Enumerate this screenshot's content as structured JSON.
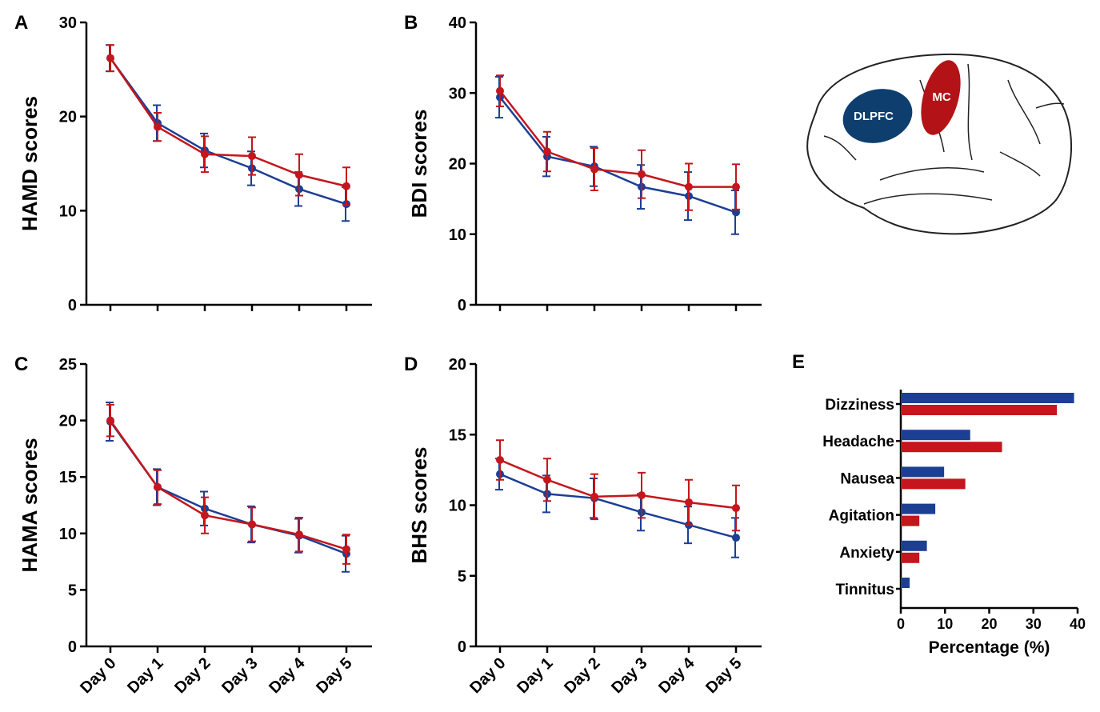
{
  "chart_data": [
    {
      "type": "line",
      "label": "A",
      "ylabel": "HAMD scores",
      "categories": [
        null,
        null,
        null,
        null,
        null,
        null
      ],
      "ylim": [
        0,
        30
      ],
      "yticks": [
        0,
        10,
        20,
        30
      ],
      "series": [
        {
          "color": "#1c3f94",
          "values": [
            26.2,
            19.3,
            16.4,
            14.5,
            12.3,
            10.7
          ],
          "errors": [
            1.4,
            1.9,
            1.8,
            1.8,
            1.8,
            1.8
          ]
        },
        {
          "color": "#c4161c",
          "values": [
            26.2,
            18.9,
            16.0,
            15.8,
            13.8,
            12.6
          ],
          "errors": [
            1.4,
            1.5,
            1.9,
            2.0,
            2.2,
            2.0
          ]
        }
      ]
    },
    {
      "type": "line",
      "label": "B",
      "ylabel": "BDI scores",
      "categories": [
        null,
        null,
        null,
        null,
        null,
        null
      ],
      "ylim": [
        0,
        40
      ],
      "yticks": [
        0,
        10,
        20,
        30,
        40
      ],
      "series": [
        {
          "color": "#1c3f94",
          "values": [
            29.4,
            21.0,
            19.6,
            16.7,
            15.4,
            13.1
          ],
          "errors": [
            2.9,
            2.8,
            2.8,
            3.1,
            3.4,
            3.1
          ]
        },
        {
          "color": "#c4161c",
          "values": [
            30.3,
            21.7,
            19.2,
            18.5,
            16.7,
            16.7
          ],
          "errors": [
            2.2,
            2.8,
            3.0,
            3.4,
            3.3,
            3.2
          ]
        }
      ]
    },
    {
      "type": "line",
      "label": "C",
      "ylabel": "HAMA scores",
      "categories": [
        "Day 0",
        "Day 1",
        "Day 2",
        "Day 3",
        "Day 4",
        "Day 5"
      ],
      "ylim": [
        0,
        25
      ],
      "yticks": [
        0,
        5,
        10,
        15,
        20,
        25
      ],
      "series": [
        {
          "color": "#1c3f94",
          "values": [
            19.9,
            14.1,
            12.2,
            10.8,
            9.8,
            8.2
          ],
          "errors": [
            1.7,
            1.6,
            1.5,
            1.6,
            1.5,
            1.6
          ]
        },
        {
          "color": "#c4161c",
          "values": [
            20.0,
            14.1,
            11.6,
            10.8,
            9.9,
            8.6
          ],
          "errors": [
            1.4,
            1.5,
            1.6,
            1.5,
            1.5,
            1.3
          ]
        }
      ]
    },
    {
      "type": "line",
      "label": "D",
      "ylabel": "BHS scores",
      "categories": [
        "Day 0",
        "Day 1",
        "Day 2",
        "Day 3",
        "Day 4",
        "Day 5"
      ],
      "ylim": [
        0,
        20
      ],
      "yticks": [
        0,
        5,
        10,
        15,
        20
      ],
      "series": [
        {
          "color": "#1c3f94",
          "values": [
            12.2,
            10.8,
            10.5,
            9.5,
            8.6,
            7.7
          ],
          "errors": [
            1.1,
            1.3,
            1.4,
            1.3,
            1.3,
            1.4
          ]
        },
        {
          "color": "#c4161c",
          "values": [
            13.2,
            11.8,
            10.6,
            10.7,
            10.2,
            9.8
          ],
          "errors": [
            1.4,
            1.5,
            1.6,
            1.6,
            1.6,
            1.6
          ]
        }
      ]
    },
    {
      "type": "hbar",
      "label": "E",
      "xlabel": "Percentage (%)",
      "categories": [
        "Dizziness",
        "Headache",
        "Nausea",
        "Agitation",
        "Anxiety",
        "Tinnitus"
      ],
      "xlim": [
        0,
        40
      ],
      "xticks": [
        0,
        10,
        20,
        30,
        40
      ],
      "series": [
        {
          "color": "#1c3f94",
          "values": [
            39.2,
            15.7,
            9.8,
            7.8,
            5.9,
            2.0
          ]
        },
        {
          "color": "#c4161c",
          "values": [
            35.3,
            22.9,
            14.6,
            4.2,
            4.2,
            0
          ]
        }
      ]
    }
  ],
  "diagram": {
    "labels": [
      "DLPFC",
      "MC"
    ]
  }
}
